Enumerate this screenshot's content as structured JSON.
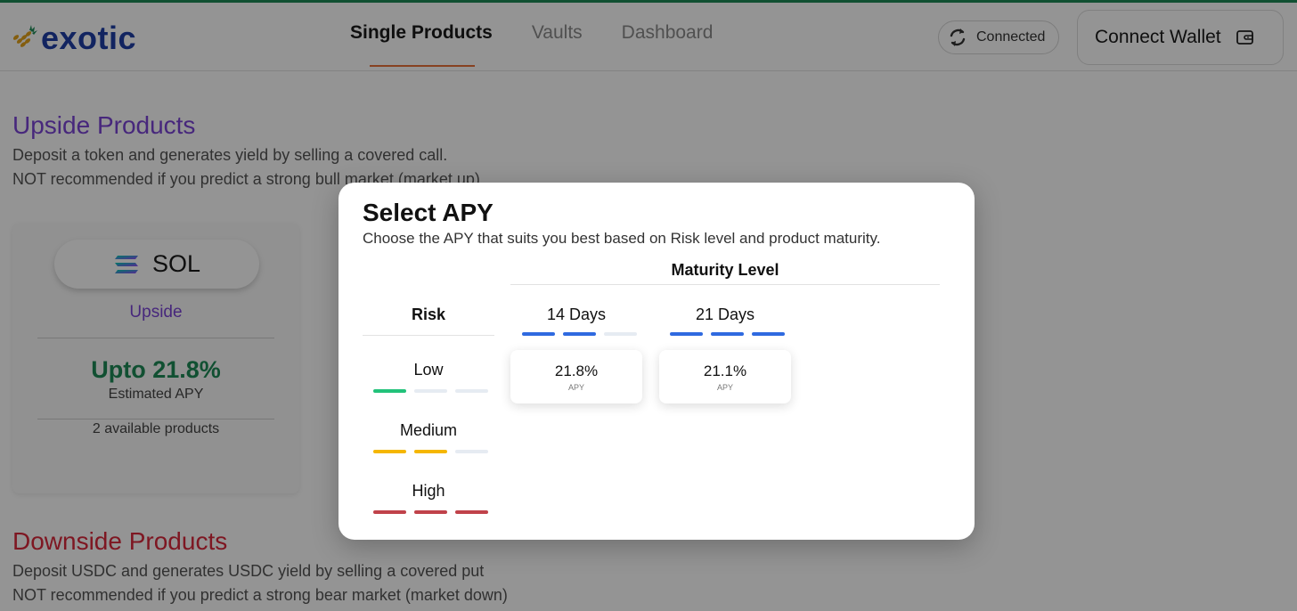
{
  "header": {
    "logo_text": "exotic",
    "nav": [
      {
        "label": "Single Products",
        "active": true
      },
      {
        "label": "Vaults",
        "active": false
      },
      {
        "label": "Dashboard",
        "active": false
      }
    ],
    "status": "Connected",
    "connect_wallet": "Connect Wallet"
  },
  "upside": {
    "title": "Upside Products",
    "desc_line1": "Deposit a token and generates yield by selling a covered call.",
    "desc_line2": "NOT recommended if you predict a strong bull market (market up)"
  },
  "card": {
    "token": "SOL",
    "type": "Upside",
    "apy": "Upto 21.8%",
    "apy_label": "Estimated APY",
    "count": "2 available products"
  },
  "downside": {
    "title": "Downside Products",
    "desc_line1": "Deposit USDC and generates USDC yield by selling a covered put",
    "desc_line2": "NOT recommended if you predict a strong bear market (market down)"
  },
  "modal": {
    "title": "Select APY",
    "subtitle": "Choose the APY that suits you best based on Risk level and product maturity.",
    "maturity_heading": "Maturity Level",
    "risk_heading": "Risk",
    "risks": [
      {
        "label": "Low",
        "level": 1,
        "color": "#22c27a"
      },
      {
        "label": "Medium",
        "level": 2,
        "color": "#f5b700"
      },
      {
        "label": "High",
        "level": 3,
        "color": "#c0424a"
      }
    ],
    "maturities": [
      {
        "label": "14 Days",
        "level": 2,
        "apy": "21.8%",
        "apy_unit": "APY"
      },
      {
        "label": "21 Days",
        "level": 3,
        "apy": "21.1%",
        "apy_unit": "APY"
      }
    ],
    "maturity_bar_color": "#2f6ae0"
  }
}
